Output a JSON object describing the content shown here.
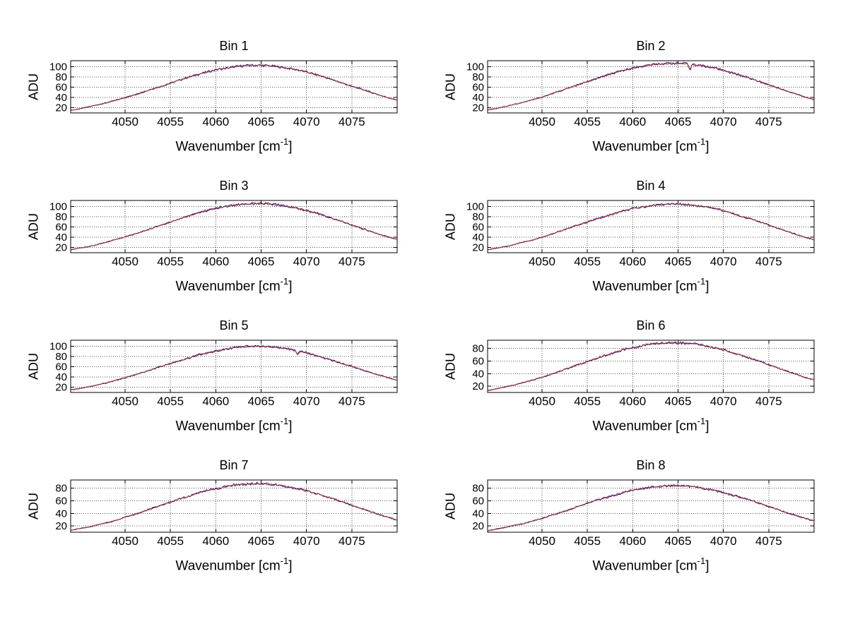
{
  "figure": {
    "background": "#ffffff"
  },
  "labels": {
    "ylabel": "ADU",
    "xlabel_main": "Wavenumber [cm",
    "xlabel_sup": "-1",
    "xlabel_end": "]"
  },
  "colors": {
    "axis": "#000000",
    "grid": "#555555",
    "text": "#000000",
    "data_line": "#2020b0",
    "fit_line": "#b01818"
  },
  "chart_data": [
    {
      "type": "line",
      "title": "Bin 1",
      "ylabel": "ADU",
      "xlabel": "Wavenumber [cm⁻¹]",
      "x_start": 4044,
      "x_step": 1,
      "xlim": [
        4044,
        4080
      ],
      "xticks": [
        4050,
        4055,
        4060,
        4065,
        4070,
        4075
      ],
      "ylim": [
        10,
        112
      ],
      "yticks": [
        20,
        40,
        60,
        80,
        100
      ],
      "grid": true,
      "line_colors": [
        "#2020b0",
        "#b01818"
      ],
      "values": [
        15,
        18,
        22,
        26,
        30,
        35,
        40,
        45,
        51,
        57,
        62,
        68,
        74,
        80,
        85,
        90,
        94,
        97,
        100,
        102,
        103,
        103,
        102,
        100,
        97,
        94,
        90,
        85,
        80,
        74,
        68,
        62,
        57,
        51,
        45,
        40,
        35
      ]
    },
    {
      "type": "line",
      "title": "Bin 2",
      "ylabel": "ADU",
      "xlabel": "Wavenumber [cm⁻¹]",
      "x_start": 4044,
      "x_step": 1,
      "xlim": [
        4044,
        4080
      ],
      "xticks": [
        4050,
        4055,
        4060,
        4065,
        4070,
        4075
      ],
      "ylim": [
        10,
        112
      ],
      "yticks": [
        20,
        40,
        60,
        80,
        100
      ],
      "grid": true,
      "line_colors": [
        "#2020b0",
        "#b01818"
      ],
      "spikes": [
        {
          "x": 4066.3,
          "depth": 13
        }
      ],
      "values": [
        16,
        19,
        23,
        27,
        31,
        36,
        41,
        47,
        53,
        59,
        65,
        71,
        77,
        83,
        88,
        93,
        98,
        101,
        104,
        106,
        107,
        107,
        106,
        104,
        101,
        98,
        93,
        88,
        83,
        77,
        71,
        65,
        59,
        53,
        47,
        41,
        36
      ]
    },
    {
      "type": "line",
      "title": "Bin 3",
      "ylabel": "ADU",
      "xlabel": "Wavenumber [cm⁻¹]",
      "x_start": 4044,
      "x_step": 1,
      "xlim": [
        4044,
        4080
      ],
      "xticks": [
        4050,
        4055,
        4060,
        4065,
        4070,
        4075
      ],
      "ylim": [
        10,
        112
      ],
      "yticks": [
        20,
        40,
        60,
        80,
        100
      ],
      "grid": true,
      "line_colors": [
        "#2020b0",
        "#b01818"
      ],
      "values": [
        16,
        19,
        22,
        26,
        31,
        36,
        41,
        46,
        52,
        58,
        64,
        70,
        76,
        82,
        88,
        92,
        97,
        100,
        103,
        105,
        106,
        106,
        105,
        103,
        100,
        97,
        92,
        88,
        82,
        76,
        70,
        64,
        58,
        52,
        46,
        41,
        36
      ]
    },
    {
      "type": "line",
      "title": "Bin 4",
      "ylabel": "ADU",
      "xlabel": "Wavenumber [cm⁻¹]",
      "x_start": 4044,
      "x_step": 1,
      "xlim": [
        4044,
        4080
      ],
      "xticks": [
        4050,
        4055,
        4060,
        4065,
        4070,
        4075
      ],
      "ylim": [
        10,
        112
      ],
      "yticks": [
        20,
        40,
        60,
        80,
        100
      ],
      "grid": true,
      "line_colors": [
        "#2020b0",
        "#b01818"
      ],
      "values": [
        16,
        19,
        22,
        26,
        31,
        35,
        40,
        46,
        52,
        58,
        64,
        70,
        76,
        81,
        87,
        92,
        96,
        99,
        102,
        104,
        105,
        105,
        104,
        102,
        99,
        96,
        92,
        87,
        81,
        76,
        70,
        64,
        58,
        52,
        46,
        40,
        35
      ]
    },
    {
      "type": "line",
      "title": "Bin 5",
      "ylabel": "ADU",
      "xlabel": "Wavenumber [cm⁻¹]",
      "x_start": 4044,
      "x_step": 1,
      "xlim": [
        4044,
        4080
      ],
      "xticks": [
        4050,
        4055,
        4060,
        4065,
        4070,
        4075
      ],
      "ylim": [
        10,
        112
      ],
      "yticks": [
        20,
        40,
        60,
        80,
        100
      ],
      "grid": true,
      "line_colors": [
        "#2020b0",
        "#b01818"
      ],
      "spikes": [
        {
          "x": 4069.0,
          "depth": 6
        }
      ],
      "values": [
        15,
        18,
        21,
        25,
        29,
        34,
        39,
        44,
        49,
        55,
        61,
        66,
        72,
        77,
        83,
        87,
        91,
        95,
        97,
        99,
        100,
        100,
        99,
        97,
        95,
        91,
        87,
        83,
        77,
        72,
        66,
        61,
        55,
        49,
        44,
        39,
        34
      ]
    },
    {
      "type": "line",
      "title": "Bin 6",
      "ylabel": "ADU",
      "xlabel": "Wavenumber [cm⁻¹]",
      "x_start": 4044,
      "x_step": 1,
      "xlim": [
        4044,
        4080
      ],
      "xticks": [
        4050,
        4055,
        4060,
        4065,
        4070,
        4075
      ],
      "ylim": [
        10,
        93
      ],
      "yticks": [
        20,
        40,
        60,
        80
      ],
      "grid": true,
      "line_colors": [
        "#2020b0",
        "#b01818"
      ],
      "values": [
        13,
        16,
        19,
        22,
        26,
        30,
        34,
        39,
        44,
        49,
        54,
        59,
        64,
        69,
        73,
        78,
        81,
        84,
        87,
        88,
        89,
        89,
        88,
        87,
        84,
        81,
        78,
        73,
        69,
        64,
        59,
        54,
        49,
        44,
        39,
        34,
        30
      ]
    },
    {
      "type": "line",
      "title": "Bin 7",
      "ylabel": "ADU",
      "xlabel": "Wavenumber [cm⁻¹]",
      "x_start": 4044,
      "x_step": 1,
      "xlim": [
        4044,
        4080
      ],
      "xticks": [
        4050,
        4055,
        4060,
        4065,
        4070,
        4075
      ],
      "ylim": [
        10,
        93
      ],
      "yticks": [
        20,
        40,
        60,
        80
      ],
      "grid": true,
      "line_colors": [
        "#2020b0",
        "#b01818"
      ],
      "values": [
        13,
        16,
        18,
        22,
        25,
        29,
        34,
        38,
        43,
        48,
        53,
        58,
        63,
        67,
        72,
        76,
        79,
        82,
        85,
        86,
        87,
        87,
        86,
        85,
        82,
        79,
        76,
        72,
        67,
        63,
        58,
        53,
        48,
        43,
        38,
        34,
        29
      ]
    },
    {
      "type": "line",
      "title": "Bin 8",
      "ylabel": "ADU",
      "xlabel": "Wavenumber [cm⁻¹]",
      "x_start": 4044,
      "x_step": 1,
      "xlim": [
        4044,
        4080
      ],
      "xticks": [
        4050,
        4055,
        4060,
        4065,
        4070,
        4075
      ],
      "ylim": [
        10,
        93
      ],
      "yticks": [
        20,
        40,
        60,
        80
      ],
      "grid": true,
      "line_colors": [
        "#2020b0",
        "#b01818"
      ],
      "values": [
        12,
        15,
        18,
        21,
        24,
        28,
        32,
        37,
        41,
        46,
        51,
        56,
        61,
        65,
        69,
        73,
        77,
        79,
        82,
        83,
        84,
        84,
        83,
        82,
        79,
        77,
        73,
        69,
        65,
        61,
        56,
        51,
        46,
        41,
        37,
        32,
        28
      ]
    }
  ]
}
